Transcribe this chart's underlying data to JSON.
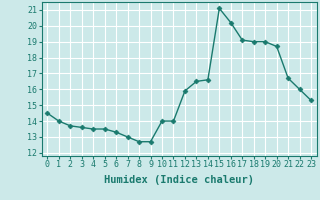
{
  "x": [
    0,
    1,
    2,
    3,
    4,
    5,
    6,
    7,
    8,
    9,
    10,
    11,
    12,
    13,
    14,
    15,
    16,
    17,
    18,
    19,
    20,
    21,
    22,
    23
  ],
  "y": [
    14.5,
    14.0,
    13.7,
    13.6,
    13.5,
    13.5,
    13.3,
    13.0,
    12.7,
    12.7,
    14.0,
    14.0,
    15.9,
    16.5,
    16.6,
    21.1,
    20.2,
    19.1,
    19.0,
    19.0,
    18.7,
    16.7,
    16.0,
    15.3
  ],
  "line_color": "#1a7a6e",
  "marker": "D",
  "marker_size": 2.5,
  "bg_color": "#cce9e9",
  "grid_color": "#ffffff",
  "xlabel": "Humidex (Indice chaleur)",
  "ylim": [
    11.8,
    21.5
  ],
  "xlim": [
    -0.5,
    23.5
  ],
  "yticks": [
    12,
    13,
    14,
    15,
    16,
    17,
    18,
    19,
    20,
    21
  ],
  "xticks": [
    0,
    1,
    2,
    3,
    4,
    5,
    6,
    7,
    8,
    9,
    10,
    11,
    12,
    13,
    14,
    15,
    16,
    17,
    18,
    19,
    20,
    21,
    22,
    23
  ],
  "xlabel_fontsize": 7.5,
  "tick_fontsize": 6,
  "line_width": 1.0
}
